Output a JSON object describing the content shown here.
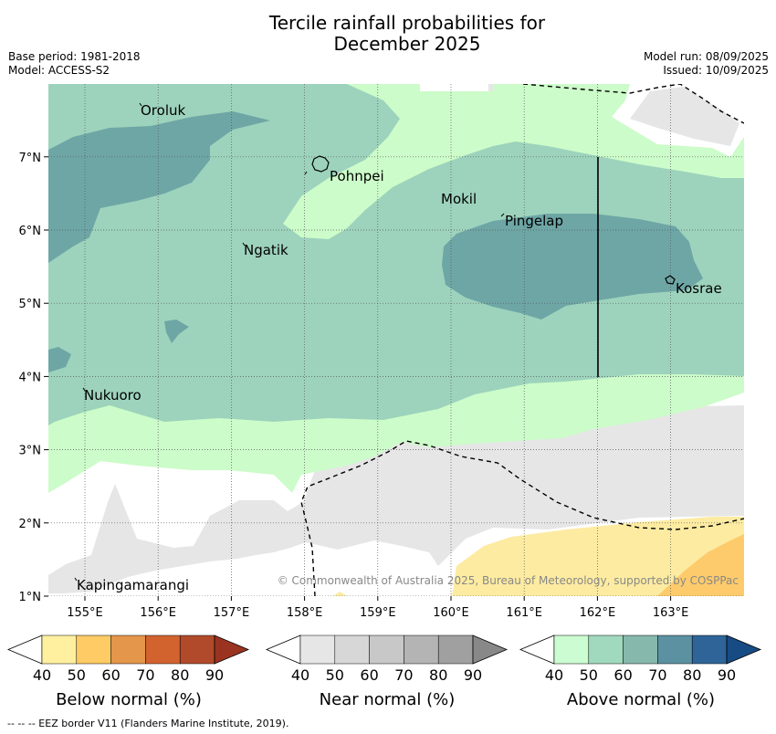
{
  "header": {
    "title_line1": "Tercile rainfall probabilities for",
    "title_line2": "December 2025",
    "base_period": "Base period: 1981-2018",
    "model": "Model: ACCESS-S2",
    "model_run": "Model run: 08/09/2025",
    "issued": "Issued: 10/09/2025"
  },
  "map": {
    "lat_ticks": [
      "1°N",
      "2°N",
      "3°N",
      "4°N",
      "5°N",
      "6°N",
      "7°N"
    ],
    "lon_ticks": [
      "155°E",
      "156°E",
      "157°E",
      "158°E",
      "159°E",
      "160°E",
      "161°E",
      "162°E",
      "163°E"
    ],
    "places": [
      "Oroluk",
      "Pohnpei",
      "Mokil",
      "Pingelap",
      "Ngatik",
      "Kosrae",
      "Nukuoro",
      "Kapingamarangi"
    ],
    "copyright": "© Commonwealth of Australia 2025, Bureau of Meteorology, supported by COSPPac",
    "colors": {
      "above_40": "#ccfcc9",
      "above_50": "#9dd3bc",
      "above_60": "#6ea6a6",
      "near_40": "#e6e6e6",
      "below_40": "#fdeba1",
      "below_50": "#fdcb6b"
    }
  },
  "colorbars": [
    {
      "name": "Below normal (%)",
      "ticks": [
        "40",
        "50",
        "60",
        "70",
        "80",
        "90"
      ],
      "colors": [
        "#fff09f",
        "#fecb64",
        "#e4964a",
        "#d2632f",
        "#b14a2b",
        "#9a3420"
      ]
    },
    {
      "name": "Near normal (%)",
      "ticks": [
        "40",
        "50",
        "60",
        "70",
        "80",
        "90"
      ],
      "colors": [
        "#e6e6e6",
        "#d7d7d7",
        "#c8c8c8",
        "#b4b4b4",
        "#a0a0a0",
        "#888888"
      ]
    },
    {
      "name": "Above normal (%)",
      "ticks": [
        "40",
        "50",
        "60",
        "70",
        "80",
        "90"
      ],
      "colors": [
        "#ccfcd1",
        "#a0d9be",
        "#86b9ab",
        "#5b91a1",
        "#2f6498",
        "#174b83"
      ]
    }
  ],
  "footnote": "-- -- -- EEZ border V11 (Flanders Marine Institute, 2019)."
}
